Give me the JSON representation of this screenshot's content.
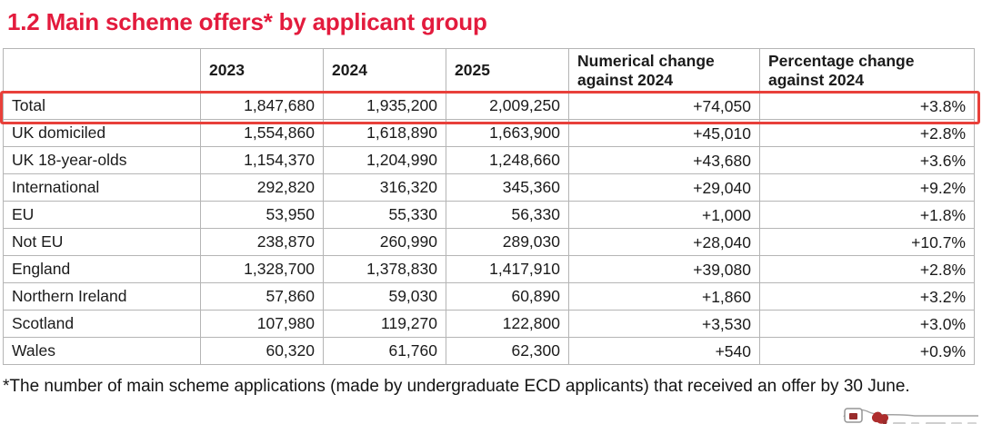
{
  "colors": {
    "title_red": "#e31b3d",
    "highlight_red": "#e8403a",
    "border_gray": "#b5b5b5",
    "text_dark": "#1b1b1b"
  },
  "title": "1.2 Main scheme offers* by applicant group",
  "table": {
    "columns": [
      "",
      "2023",
      "2024",
      "2025",
      "Numerical change against 2024",
      "Percentage change against 2024"
    ],
    "rows": [
      {
        "label": "Total",
        "values": [
          "1,847,680",
          "1,935,200",
          "2,009,250",
          "+74,050",
          "+3.8%"
        ],
        "highlighted": true
      },
      {
        "label": "UK domiciled",
        "values": [
          "1,554,860",
          "1,618,890",
          "1,663,900",
          "+45,010",
          "+2.8%"
        ],
        "highlighted": false
      },
      {
        "label": "UK 18-year-olds",
        "values": [
          "1,154,370",
          "1,204,990",
          "1,248,660",
          "+43,680",
          "+3.6%"
        ],
        "highlighted": false
      },
      {
        "label": "International",
        "values": [
          "292,820",
          "316,320",
          "345,360",
          "+29,040",
          "+9.2%"
        ],
        "highlighted": false
      },
      {
        "label": "EU",
        "values": [
          "53,950",
          "55,330",
          "56,330",
          "+1,000",
          "+1.8%"
        ],
        "highlighted": false
      },
      {
        "label": "Not EU",
        "values": [
          "238,870",
          "260,990",
          "289,030",
          "+28,040",
          "+10.7%"
        ],
        "highlighted": false
      },
      {
        "label": "England",
        "values": [
          "1,328,700",
          "1,378,830",
          "1,417,910",
          "+39,080",
          "+2.8%"
        ],
        "highlighted": false
      },
      {
        "label": "Northern Ireland",
        "values": [
          "57,860",
          "59,030",
          "60,890",
          "+1,860",
          "+3.2%"
        ],
        "highlighted": false
      },
      {
        "label": "Scotland",
        "values": [
          "107,980",
          "119,270",
          "122,800",
          "+3,530",
          "+3.0%"
        ],
        "highlighted": false
      },
      {
        "label": "Wales",
        "values": [
          "60,320",
          "61,760",
          "62,300",
          "+540",
          "+0.9%"
        ],
        "highlighted": false
      }
    ]
  },
  "footnote": "*The number of main scheme applications (made by undergraduate ECD applicants) that received an offer by 30 June."
}
